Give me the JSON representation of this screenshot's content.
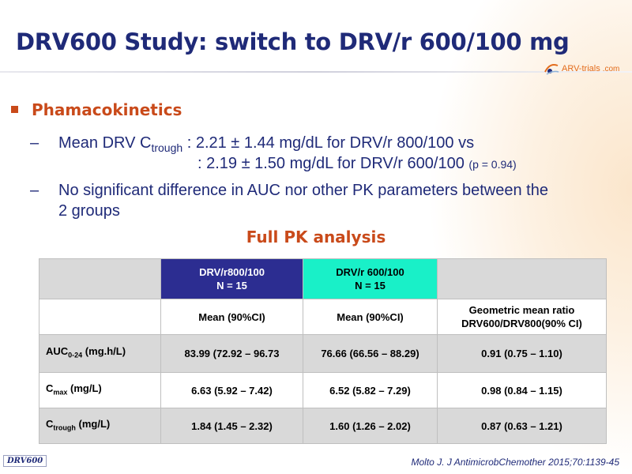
{
  "slide": {
    "title": "DRV600 Study: switch to DRV/r 600/100 mg",
    "logo_text": "ARV-trials",
    "logo_domain": ".com",
    "section_heading": "Phamacokinetics",
    "bullet1_prefix": "Mean DRV C",
    "bullet1_sub": "trough",
    "bullet1_rest": " : 2.21 ± 1.44 mg/dL for DRV/r 800/100 vs",
    "bullet1_line2": ": 2.19 ± 1.50 mg/dL for DRV/r 600/100",
    "bullet1_pvalue": "(p = 0.94)",
    "bullet2_line1": "No significant difference in AUC nor other PK parameters between the",
    "bullet2_line2": "2 groups",
    "dash": "–",
    "table_title": "Full PK analysis"
  },
  "table": {
    "group1_name": "DRV/r800/100",
    "group1_n": "N = 15",
    "group2_name": "DRV/r 600/100",
    "group2_n": "N = 15",
    "col1_header": "Mean (90%CI)",
    "col2_header": "Mean (90%CI)",
    "col3_header_line1": "Geometric mean ratio",
    "col3_header_line2": "DRV600/DRV800(90% CI)",
    "rows": [
      {
        "label": "AUC",
        "label_sub": "0-24",
        "label_rest": " (mg.h/L)",
        "v1": "83.99 (72.92 – 96.73",
        "v2": "76.66 (66.56 – 88.29)",
        "v3": "0.91 (0.75 – 1.10)"
      },
      {
        "label": "C",
        "label_sub": "max",
        "label_rest": " (mg/L)",
        "v1": "6.63 (5.92 – 7.42)",
        "v2": "6.52 (5.82 – 7.29)",
        "v3": "0.98 (0.84 – 1.15)"
      },
      {
        "label": "C",
        "label_sub": "trough",
        "label_rest": " (mg/L)",
        "v1": "1.84 (1.45 – 2.32)",
        "v2": "1.60 (1.26 – 2.02)",
        "v3": "0.87 (0.63 – 1.21)"
      }
    ]
  },
  "footer": {
    "badge": "DRV600",
    "reference": "Molto J. J AntimicrobChemother 2015;70:1139-45"
  },
  "colors": {
    "title": "#1f2a78",
    "accent": "#c94a1a",
    "group1_header": "#2c2d91",
    "group2_header": "#19f0c8",
    "table_gray": "#d9d9d9"
  },
  "icons": {
    "logo": "arv-trials-logo-icon",
    "bullet": "square-bullet-icon"
  }
}
